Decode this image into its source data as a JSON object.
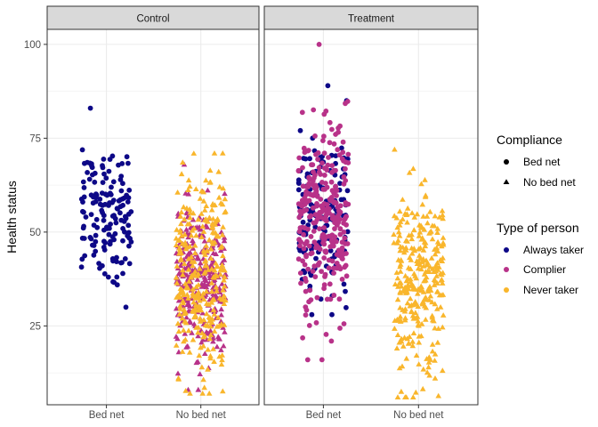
{
  "chart_data": {
    "type": "scatter",
    "subtype": "faceted jitter scatter",
    "ylabel": "Health status",
    "xlabel": "",
    "ylim": [
      4,
      104
    ],
    "yticks": [
      25,
      50,
      75,
      100
    ],
    "grid": true,
    "legend_position": "right",
    "categories": [
      "Bed net",
      "No bed net"
    ],
    "facets": [
      {
        "label": "Control"
      },
      {
        "label": "Treatment"
      }
    ],
    "legends": {
      "shape": {
        "title": "Compliance",
        "items": [
          {
            "label": "Bed net",
            "shape": "circle"
          },
          {
            "label": "No bed net",
            "shape": "triangle"
          }
        ]
      },
      "color": {
        "title": "Type of person",
        "items": [
          {
            "label": "Always taker",
            "color": "#0d0887"
          },
          {
            "label": "Complier",
            "color": "#b83289"
          },
          {
            "label": "Never taker",
            "color": "#f9b62c"
          }
        ]
      }
    },
    "groups": [
      {
        "facet": 0,
        "category": "Bed net",
        "type": "Always taker",
        "shape": "circle",
        "n": 150,
        "mean": 55,
        "sd": 10,
        "min": 30,
        "max": 83
      },
      {
        "facet": 0,
        "category": "No bed net",
        "type": "Complier",
        "shape": "triangle",
        "n": 300,
        "mean": 37,
        "sd": 10,
        "min": 8,
        "max": 68
      },
      {
        "facet": 0,
        "category": "No bed net",
        "type": "Never taker",
        "shape": "triangle",
        "n": 300,
        "mean": 38,
        "sd": 13,
        "min": 7,
        "max": 71
      },
      {
        "facet": 1,
        "category": "Bed net",
        "type": "Always taker",
        "shape": "circle",
        "n": 150,
        "mean": 55,
        "sd": 10,
        "min": 28,
        "max": 89
      },
      {
        "facet": 1,
        "category": "Bed net",
        "type": "Complier",
        "shape": "circle",
        "n": 300,
        "mean": 53,
        "sd": 13,
        "min": 16,
        "max": 100
      },
      {
        "facet": 1,
        "category": "No bed net",
        "type": "Never taker",
        "shape": "triangle",
        "n": 300,
        "mean": 37,
        "sd": 13,
        "min": 6,
        "max": 72
      }
    ]
  }
}
